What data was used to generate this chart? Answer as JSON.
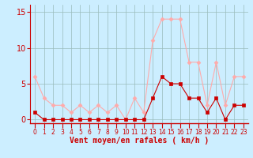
{
  "x": [
    0,
    1,
    2,
    3,
    4,
    5,
    6,
    7,
    8,
    9,
    10,
    11,
    12,
    13,
    14,
    15,
    16,
    17,
    18,
    19,
    20,
    21,
    22,
    23
  ],
  "vent_moyen": [
    1,
    0,
    0,
    0,
    0,
    0,
    0,
    0,
    0,
    0,
    0,
    0,
    0,
    3,
    6,
    5,
    5,
    3,
    3,
    1,
    3,
    0,
    2,
    2
  ],
  "rafales": [
    6,
    3,
    2,
    2,
    1,
    2,
    1,
    2,
    1,
    2,
    0,
    3,
    1,
    11,
    14,
    14,
    14,
    8,
    8,
    2,
    8,
    2,
    6,
    6
  ],
  "color_moyen": "#cc0000",
  "color_rafales": "#ffaaaa",
  "bg_color": "#cceeff",
  "grid_color": "#99bbbb",
  "xlabel": "Vent moyen/en rafales ( km/h )",
  "ylim_min": -0.5,
  "ylim_max": 16,
  "yticks": [
    0,
    5,
    10,
    15
  ],
  "tick_color": "#cc0000",
  "marker_moyen": "s",
  "marker_rafales": "D",
  "linewidth": 0.8,
  "markersize": 2.5
}
